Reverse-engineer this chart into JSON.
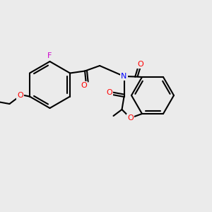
{
  "figsize": [
    3.0,
    3.0
  ],
  "dpi": 100,
  "bg_color": "#ebebeb",
  "bond_color": "#000000",
  "bond_lw": 1.5,
  "atom_colors": {
    "O": "#ff0000",
    "N": "#0000ff",
    "F": "#cc00cc",
    "C": "#000000"
  }
}
